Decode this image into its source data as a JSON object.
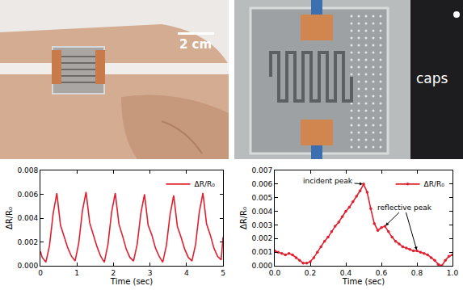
{
  "photos": [
    {
      "scale_bar": "2 cm"
    },
    {
      "text": "caps"
    }
  ],
  "chart_data": [
    {
      "type": "line",
      "ylabel": "ΔR/R₀",
      "xlabel": "Time (sec)",
      "legend": "top right",
      "grid": false,
      "xlim": [
        0,
        5
      ],
      "xticks": [
        0,
        1,
        2,
        3,
        4,
        5
      ],
      "ylim": [
        0,
        0.008
      ],
      "yticks": [
        {
          "value": 0,
          "label": "0.000"
        },
        0.002,
        0.004,
        0.006,
        0.008
      ],
      "x": [
        0,
        0.05,
        0.15,
        0.25,
        0.35,
        0.45,
        0.55,
        0.65,
        0.75,
        0.85,
        0.95,
        1.05,
        1.15,
        1.25,
        1.35,
        1.45,
        1.55,
        1.65,
        1.75,
        1.85,
        1.95,
        2.05,
        2.15,
        2.25,
        2.35,
        2.45,
        2.55,
        2.65,
        2.75,
        2.85,
        2.95,
        3.05,
        3.15,
        3.25,
        3.35,
        3.45,
        3.55,
        3.65,
        3.75,
        3.85,
        3.95,
        4.05,
        4.15,
        4.25,
        4.35,
        4.45,
        4.55,
        4.65,
        4.75,
        4.85,
        4.95,
        5.0
      ],
      "series": [
        {
          "name": "ΔR/R₀",
          "color": "#e0202e",
          "line_style": "solid",
          "marker": "none",
          "values": [
            0.0012,
            0.0007,
            0.0003,
            0.0017,
            0.0044,
            0.0061,
            0.0034,
            0.0025,
            0.0015,
            0.0008,
            0.0004,
            0.0019,
            0.0046,
            0.0062,
            0.0036,
            0.0026,
            0.0016,
            0.0008,
            0.0003,
            0.0018,
            0.0045,
            0.0061,
            0.0035,
            0.0025,
            0.0014,
            0.0007,
            0.0004,
            0.0018,
            0.0044,
            0.006,
            0.0034,
            0.0026,
            0.0015,
            0.0008,
            0.0003,
            0.0017,
            0.0043,
            0.0059,
            0.0033,
            0.0024,
            0.0014,
            0.0007,
            0.0004,
            0.0018,
            0.0045,
            0.0061,
            0.0035,
            0.0026,
            0.0015,
            0.0008,
            0.0005,
            0.0024
          ]
        }
      ]
    },
    {
      "type": "line",
      "ylabel": "ΔR/R₀",
      "xlabel": "Time (sec)",
      "legend": "top right",
      "grid": false,
      "xlim": [
        0,
        1.0
      ],
      "xticks": [
        {
          "value": 0,
          "label": "0.0"
        },
        0.2,
        0.4,
        0.6,
        0.8,
        {
          "value": 1.0,
          "label": "1.0"
        }
      ],
      "ylim": [
        0,
        0.007
      ],
      "yticks": [
        {
          "value": 0,
          "label": "0.000"
        },
        0.001,
        0.002,
        0.003,
        0.004,
        0.005,
        0.006,
        0.007
      ],
      "x": [
        0,
        0.02,
        0.04,
        0.06,
        0.08,
        0.1,
        0.12,
        0.14,
        0.16,
        0.18,
        0.2,
        0.22,
        0.24,
        0.26,
        0.28,
        0.3,
        0.32,
        0.34,
        0.36,
        0.38,
        0.4,
        0.42,
        0.44,
        0.46,
        0.48,
        0.5,
        0.52,
        0.54,
        0.56,
        0.58,
        0.6,
        0.62,
        0.64,
        0.66,
        0.68,
        0.7,
        0.72,
        0.74,
        0.76,
        0.78,
        0.8,
        0.82,
        0.84,
        0.86,
        0.88,
        0.9,
        0.92,
        0.94,
        0.96,
        0.98,
        1.0
      ],
      "series": [
        {
          "name": "ΔR/R₀",
          "color": "#e0202e",
          "line_style": "solid",
          "marker": "circle",
          "values": [
            0.0011,
            0.001,
            0.0009,
            0.0008,
            0.0009,
            0.0008,
            0.0006,
            0.0004,
            0.0002,
            0.0002,
            0.0003,
            0.0006,
            0.001,
            0.0014,
            0.0018,
            0.0021,
            0.0025,
            0.0029,
            0.0032,
            0.0036,
            0.004,
            0.0043,
            0.0047,
            0.0051,
            0.0055,
            0.006,
            0.0054,
            0.0042,
            0.0031,
            0.0026,
            0.0028,
            0.0029,
            0.0025,
            0.0021,
            0.0018,
            0.0016,
            0.0014,
            0.0013,
            0.0012,
            0.0011,
            0.0011,
            0.001,
            0.0009,
            0.0008,
            0.0006,
            0.0004,
            0.0001,
            0.0,
            0.0004,
            0.0007,
            0.0008
          ]
        }
      ],
      "annotations": [
        {
          "text": "incident peak",
          "points": [
            {
              "x": 0.5,
              "y": 0.006
            }
          ]
        },
        {
          "text": "reflective peak",
          "points": [
            {
              "x": 0.62,
              "y": 0.0029
            },
            {
              "x": 0.8,
              "y": 0.0011
            }
          ]
        }
      ]
    }
  ]
}
